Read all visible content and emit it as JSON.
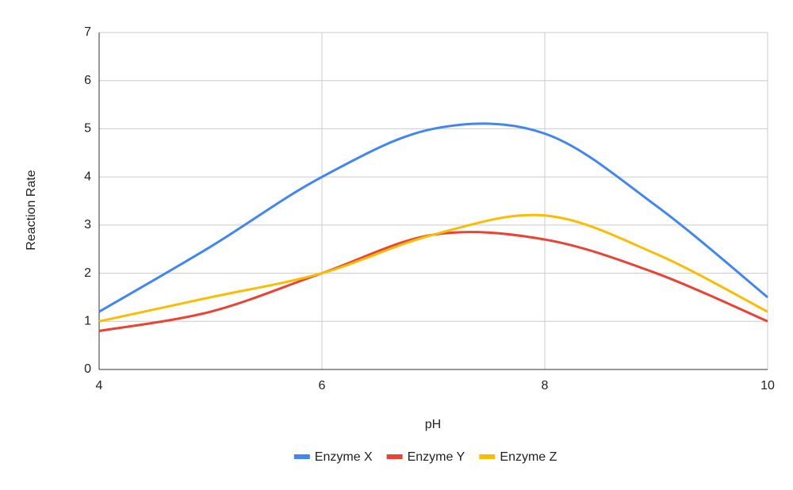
{
  "chart_data": {
    "type": "line",
    "x_label": "pH",
    "y_label": "Reaction Rate",
    "x": [
      4,
      5,
      6,
      7,
      8,
      9,
      10
    ],
    "series": [
      {
        "name": "Enzyme X",
        "color": "#4285f4",
        "values": [
          1.2,
          2.55,
          4.0,
          5.0,
          4.9,
          3.4,
          1.5
        ]
      },
      {
        "name": "Enzyme Y",
        "color": "#ea4335",
        "values": [
          0.8,
          1.2,
          2.0,
          2.8,
          2.7,
          2.0,
          1.0
        ]
      },
      {
        "name": "Enzyme Z",
        "color": "#fbbc04",
        "values": [
          1.0,
          1.5,
          2.0,
          2.8,
          3.2,
          2.4,
          1.2
        ]
      }
    ],
    "xlim": [
      4,
      10
    ],
    "xticks": [
      4,
      6,
      8,
      10
    ],
    "ylim": [
      0,
      7
    ],
    "yticks": [
      0,
      1,
      2,
      3,
      4,
      5,
      6,
      7
    ],
    "grid": true,
    "legend": "bottom",
    "smooth": true
  }
}
